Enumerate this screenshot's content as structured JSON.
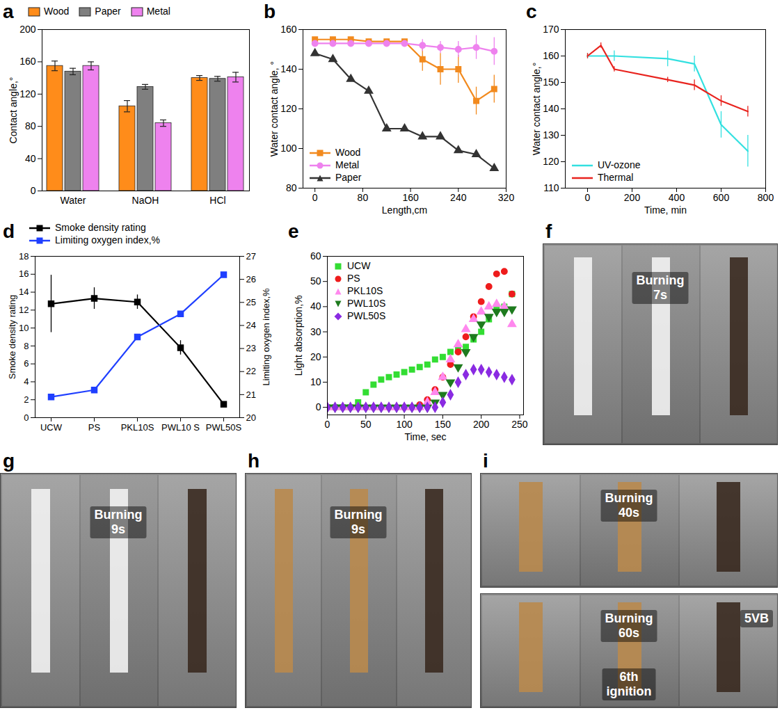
{
  "chart_data": [
    {
      "panel": "a",
      "type": "bar",
      "categories": [
        "Water",
        "NaOH",
        "HCl"
      ],
      "series": [
        {
          "name": "Wood",
          "color": "#ff8c1a",
          "values": [
            155,
            105,
            140
          ],
          "errors": [
            6,
            7,
            3
          ]
        },
        {
          "name": "Paper",
          "color": "#7f7f7f",
          "values": [
            148,
            129,
            139
          ],
          "errors": [
            4,
            3,
            3
          ]
        },
        {
          "name": "Metal",
          "color": "#ee82ee",
          "values": [
            155,
            84,
            141
          ],
          "errors": [
            5,
            4,
            6
          ]
        }
      ],
      "ylabel": "Contact angle,°",
      "ylim": [
        0,
        200
      ],
      "yticks": [
        0,
        40,
        80,
        120,
        160,
        200
      ],
      "legend": "top"
    },
    {
      "panel": "b",
      "type": "line",
      "x": [
        0,
        30,
        60,
        90,
        120,
        150,
        180,
        210,
        240,
        270,
        300
      ],
      "series": [
        {
          "name": "Wood",
          "color": "#f28a1e",
          "marker": "square",
          "values": [
            155,
            155,
            155,
            154,
            154,
            154,
            145,
            140,
            140,
            124,
            130
          ],
          "errors": [
            1,
            1,
            1,
            1,
            1,
            1,
            6,
            8,
            7,
            7,
            7
          ]
        },
        {
          "name": "Metal",
          "color": "#ee82ee",
          "marker": "circle",
          "values": [
            153,
            153,
            153,
            153,
            153,
            153,
            152,
            151,
            150,
            151,
            149
          ],
          "errors": [
            1,
            1,
            1,
            1,
            1,
            1,
            3,
            3,
            4,
            6,
            7
          ]
        },
        {
          "name": "Paper",
          "color": "#333333",
          "marker": "triangle",
          "values": [
            148,
            145,
            135,
            129,
            110,
            110,
            106,
            106,
            99,
            97,
            90
          ],
          "errors": [
            1,
            1,
            1,
            1,
            1,
            1,
            1,
            1,
            1,
            1,
            1
          ]
        }
      ],
      "xlabel": "Length,cm",
      "ylabel": "Water contact angle, °",
      "xlim": [
        -20,
        320
      ],
      "xticks": [
        0,
        80,
        160,
        240,
        320
      ],
      "ylim": [
        80,
        160
      ],
      "yticks": [
        80,
        100,
        120,
        140,
        160
      ],
      "legend": "lower left"
    },
    {
      "panel": "c",
      "type": "line",
      "series": [
        {
          "name": "UV-ozone",
          "color": "#33e0e0",
          "x": [
            0,
            120,
            360,
            480,
            600,
            720
          ],
          "values": [
            160,
            160,
            159,
            157,
            134,
            124
          ],
          "errors": [
            1,
            2,
            3,
            3,
            5,
            6
          ]
        },
        {
          "name": "Thermal",
          "color": "#e8231e",
          "x": [
            0,
            60,
            120,
            360,
            480,
            600,
            720
          ],
          "values": [
            160,
            164,
            155,
            151,
            149,
            143,
            139
          ],
          "errors": [
            1,
            1,
            1,
            1,
            2,
            2,
            2
          ]
        }
      ],
      "xlabel": "Time, min",
      "ylabel": "Water contact angle,°",
      "xlim": [
        -100,
        800
      ],
      "xticks": [
        0,
        200,
        400,
        600,
        800
      ],
      "ylim": [
        110,
        170
      ],
      "yticks": [
        110,
        120,
        130,
        140,
        150,
        160,
        170
      ],
      "legend": "lower left"
    },
    {
      "panel": "d",
      "type": "line",
      "categories": [
        "UCW",
        "PS",
        "PKL10S",
        "PWL10 S",
        "PWL50S"
      ],
      "series": [
        {
          "name": "Smoke density rating",
          "color": "#000000",
          "marker": "square",
          "values": [
            12.7,
            13.3,
            12.9,
            7.8,
            1.5
          ],
          "errors": [
            3.2,
            1.2,
            0.8,
            0.8,
            0
          ]
        },
        {
          "name": "Limiting oxygen index,%",
          "color": "#1f3fff",
          "marker": "square",
          "axis": "y2",
          "values": [
            20.9,
            21.2,
            23.5,
            24.5,
            26.2
          ]
        }
      ],
      "ylabel": "Smoke density rating",
      "y2label": "Limiting oxygen index,%",
      "ylim": [
        0,
        18
      ],
      "yticks": [
        0,
        2,
        4,
        6,
        8,
        10,
        12,
        14,
        16,
        18
      ],
      "y2lim": [
        20,
        27
      ],
      "y2ticks": [
        20,
        21,
        22,
        23,
        24,
        25,
        26,
        27
      ],
      "legend": "top"
    },
    {
      "panel": "e",
      "type": "scatter",
      "x": [
        0,
        10,
        20,
        30,
        40,
        50,
        60,
        70,
        80,
        90,
        100,
        110,
        120,
        130,
        140,
        150,
        160,
        170,
        180,
        190,
        200,
        210,
        220,
        230,
        240
      ],
      "series": [
        {
          "name": "UCW",
          "color": "#33dd33",
          "marker": "square",
          "values": [
            0,
            0,
            0,
            0,
            2,
            6,
            9,
            11,
            12,
            13,
            14,
            15,
            16,
            17,
            19,
            20,
            22,
            23,
            24,
            27,
            30,
            35,
            39,
            40,
            45
          ]
        },
        {
          "name": "PS",
          "color": "#ee1c1c",
          "marker": "circle",
          "values": [
            0,
            0,
            0,
            0,
            0,
            0,
            0,
            0,
            0,
            0,
            0,
            0,
            1,
            3,
            7,
            12,
            17,
            22,
            28,
            36,
            42,
            48,
            53,
            54,
            45
          ]
        },
        {
          "name": "PKL10S",
          "color": "#ff88ee",
          "marker": "triangle",
          "values": [
            0,
            0,
            0,
            0,
            0,
            0,
            0,
            0,
            0,
            0,
            0,
            0,
            0,
            2,
            6,
            12,
            19,
            25,
            31,
            35,
            38,
            40,
            41,
            40,
            33
          ]
        },
        {
          "name": "PWL10S",
          "color": "#1e7b1e",
          "marker": "triangle_down",
          "values": [
            0,
            0,
            0,
            0,
            0,
            0,
            0,
            0,
            0,
            0,
            0,
            0,
            0,
            0,
            2,
            5,
            10,
            16,
            22,
            28,
            33,
            36,
            38,
            38,
            39
          ]
        },
        {
          "name": "PWL50S",
          "color": "#8a2be2",
          "marker": "diamond",
          "values": [
            0,
            0,
            0,
            0,
            0,
            0,
            0,
            0,
            0,
            0,
            0,
            0,
            0,
            0,
            0,
            2,
            5,
            10,
            13,
            15,
            15,
            14,
            13,
            12,
            11
          ]
        }
      ],
      "xlabel": "Time, sec",
      "ylabel": "Light absorption,%",
      "xlim": [
        0,
        255
      ],
      "xticks": [
        0,
        50,
        100,
        150,
        200,
        250
      ],
      "ylim": [
        -3,
        60
      ],
      "yticks": [
        0,
        10,
        20,
        30,
        40,
        50,
        60
      ],
      "legend": "upper left"
    }
  ],
  "photos": [
    {
      "panel": "f",
      "frames": [
        {
          "labels": [
            [
              "Burning",
              "7s"
            ]
          ]
        }
      ]
    },
    {
      "panel": "g",
      "frames": [
        {
          "labels": [
            [
              "Burning",
              "9s"
            ]
          ]
        }
      ]
    },
    {
      "panel": "h",
      "frames": [
        {
          "labels": [
            [
              "Burning",
              "9s"
            ]
          ]
        }
      ]
    },
    {
      "panel": "i",
      "frames": [
        {
          "labels": [
            [
              "Burning",
              "40s"
            ]
          ]
        },
        {
          "labels": [
            [
              "Burning",
              "60s"
            ],
            [
              "6th",
              "ignition"
            ],
            [
              "5VB"
            ]
          ]
        }
      ]
    }
  ]
}
